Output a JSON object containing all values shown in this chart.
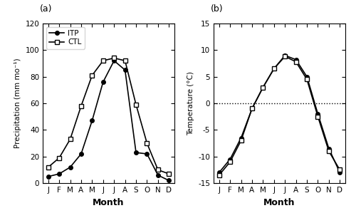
{
  "months": [
    "J",
    "F",
    "M",
    "A",
    "M",
    "J",
    "J",
    "A",
    "S",
    "O",
    "N",
    "D"
  ],
  "precip_ITP": [
    5,
    7,
    12,
    22,
    47,
    76,
    92,
    85,
    23,
    22,
    6,
    2
  ],
  "precip_CTL": [
    12,
    19,
    33,
    58,
    81,
    92,
    94,
    92,
    59,
    30,
    10,
    7
  ],
  "temp_ITP": [
    -13,
    -10.5,
    -6.5,
    -1,
    3,
    6.5,
    9,
    8.2,
    5,
    -2,
    -8.5,
    -13
  ],
  "temp_CTL": [
    -13.5,
    -11,
    -7,
    -1,
    3,
    6.5,
    8.8,
    7.8,
    4.5,
    -2.5,
    -9,
    -12.5
  ],
  "precip_ylim": [
    0,
    120
  ],
  "precip_yticks": [
    0,
    20,
    40,
    60,
    80,
    100,
    120
  ],
  "temp_ylim": [
    -15,
    15
  ],
  "temp_yticks": [
    -15,
    -10,
    -5,
    0,
    5,
    10,
    15
  ],
  "panel_a_label": "(a)",
  "panel_b_label": "(b)",
  "xlabel": "Month",
  "ylabel_a": "Precipitation (mm mo⁻¹)",
  "ylabel_b": "Temperature (°C)",
  "legend_ITP": "ITP",
  "legend_CTL": "CTL",
  "line_color": "#000000",
  "bg_color": "#ffffff"
}
